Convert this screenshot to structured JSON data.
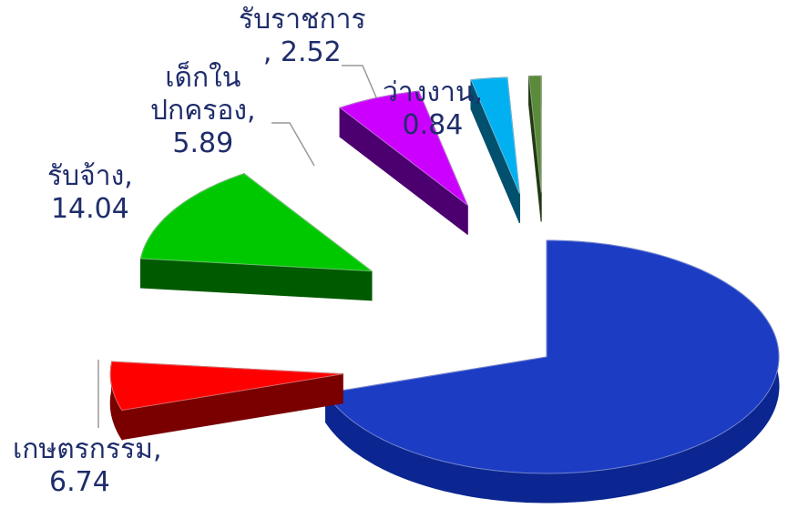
{
  "chart_data": {
    "type": "pie3d",
    "categories": [
      null,
      "เกษตรกรรม,",
      "รับจ้าง,",
      "เด็กใน\nปกครอง,",
      "รับราชการ",
      "ว่างงาน,"
    ],
    "values": [
      69.97,
      6.74,
      14.04,
      5.89,
      2.52,
      0.84
    ],
    "value_labels": [
      null,
      "6.74",
      "14.04",
      "5.89",
      ", 2.52",
      "0.84"
    ],
    "colors": [
      "#1c3cc4",
      "#ff0000",
      "#00c800",
      "#cc00ff",
      "#00b0f0",
      "#5a8a3a"
    ],
    "side_colors": [
      "#0b2690",
      "#7a0000",
      "#005a00",
      "#4c0070",
      "#00506e",
      "#223a14"
    ]
  }
}
